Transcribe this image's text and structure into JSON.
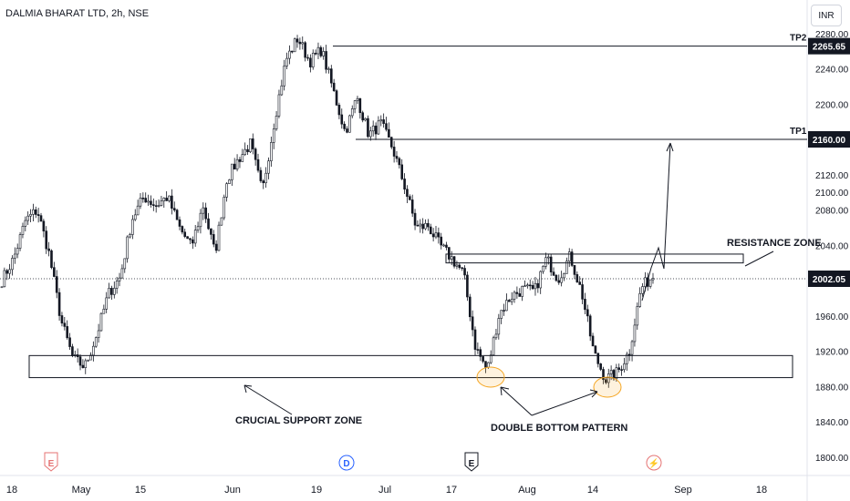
{
  "header": {
    "symbol": "DALMIA BHARAT LTD, 2h, NSE",
    "currency": "INR"
  },
  "chart_data": {
    "type": "candlestick",
    "ylim": [
      1790,
      2290
    ],
    "y_ticks": [
      1800,
      1840,
      1880,
      1920,
      1960,
      2000,
      2040,
      2080,
      2100,
      2120,
      2160,
      2200,
      2240,
      2280
    ],
    "x_tick_labels": [
      "18",
      "May",
      "15",
      "Jun",
      "19",
      "Jul",
      "17",
      "Aug",
      "14",
      "Sep",
      "18"
    ],
    "price_tags": [
      {
        "label": "2265.65",
        "value": 2265.65
      },
      {
        "label": "2160.00",
        "value": 2160.0
      },
      {
        "label": "2002.05",
        "value": 2002.05
      }
    ],
    "current_price": 2002.05,
    "levels": [
      {
        "label": "TP2",
        "value": 2265.65
      },
      {
        "label": "TP1",
        "value": 2160.0
      }
    ],
    "zones": [
      {
        "label": "RESISTANCE ZONE",
        "low": 2020,
        "high": 2030
      },
      {
        "label": "CRUCIAL SUPPORT ZONE",
        "low": 1890,
        "high": 1915
      }
    ],
    "annotations": [
      {
        "label": "DOUBLE BOTTOM PATTERN"
      }
    ],
    "event_markers": [
      {
        "letter": "E",
        "kind": "earnings"
      },
      {
        "letter": "D",
        "kind": "dividend"
      },
      {
        "letter": "E",
        "kind": "earnings"
      },
      {
        "letter": "⚡",
        "kind": "split"
      }
    ],
    "price_path": [
      2000,
      2025,
      2068,
      2080,
      2030,
      1955,
      1912,
      1902,
      1938,
      1985,
      2004,
      2070,
      2095,
      2085,
      2095,
      2060,
      2038,
      2085,
      2030,
      2115,
      2138,
      2155,
      2100,
      2180,
      2250,
      2275,
      2248,
      2262,
      2215,
      2168,
      2208,
      2165,
      2178,
      2150,
      2108,
      2060,
      2062,
      2040,
      2025,
      2008,
      1925,
      1898,
      1962,
      1982,
      1990,
      1988,
      2025,
      2002,
      2028,
      1985,
      1918,
      1888,
      1896,
      1920,
      1992,
      2005
    ],
    "colors": {
      "candles": "#131722",
      "lines": "#131722",
      "marker_earnings": "#e57373",
      "marker_dividend": "#2962ff",
      "marker_split": "#e57373",
      "ellipse": "#f5a623"
    }
  }
}
